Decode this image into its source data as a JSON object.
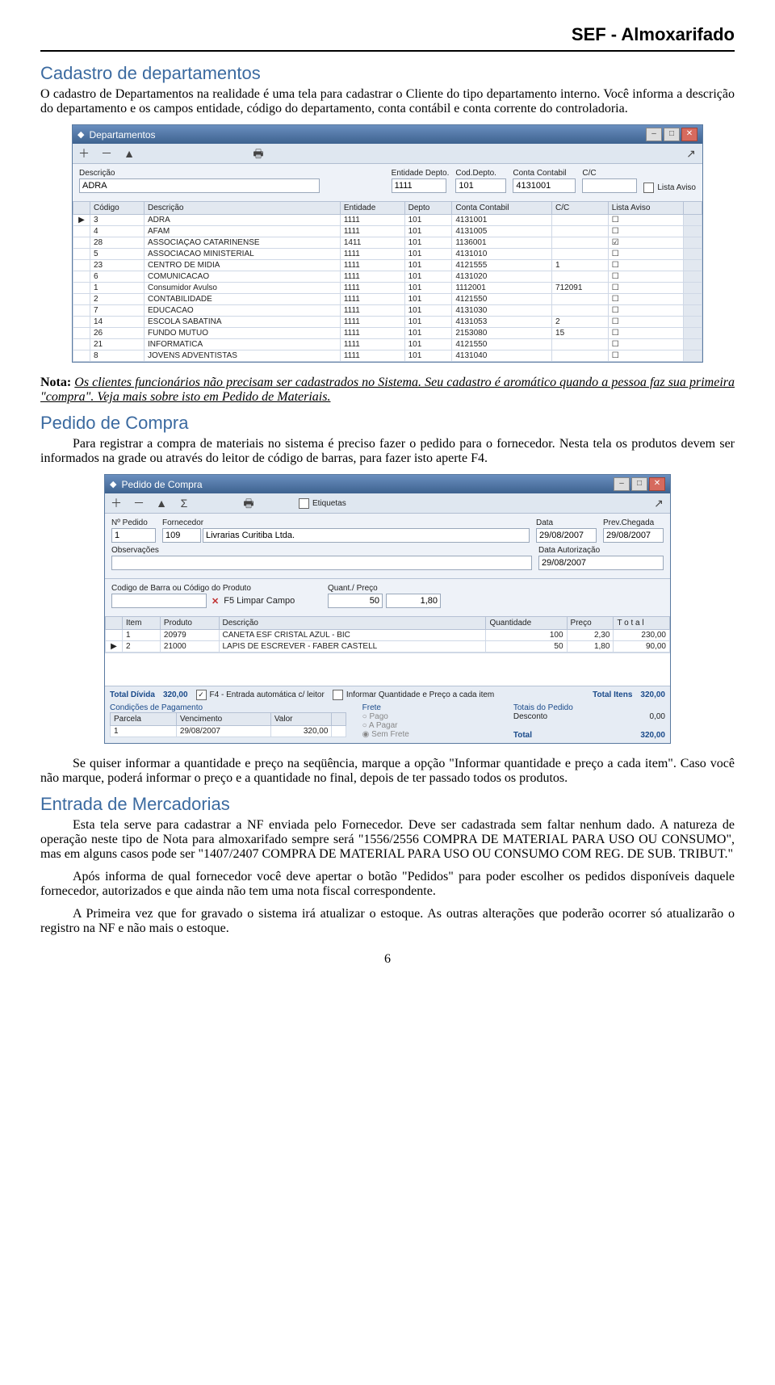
{
  "page": {
    "header": "SEF - Almoxarifado",
    "number": "6"
  },
  "sec1": {
    "title": "Cadastro de departamentos",
    "p1": "O cadastro de Departamentos na realidade é uma tela para cadastrar o Cliente do tipo departamento interno. Você informa a descrição do departamento e os campos entidade, código do departamento, conta contábil e conta corrente do controladoria."
  },
  "win1": {
    "title": "Departamentos",
    "form": {
      "descricao_label": "Descrição",
      "descricao_value": "ADRA",
      "entidade_label": "Entidade Depto.",
      "entidade_value": "1111",
      "coddepto_label": "Cod.Depto.",
      "coddepto_value": "101",
      "conta_label": "Conta Contabil",
      "conta_value": "4131001",
      "cc_label": "C/C",
      "cc_value": "",
      "lista_aviso": "Lista Aviso"
    },
    "columns": [
      "",
      "Código",
      "Descrição",
      "Entidade",
      "Depto",
      "Conta Contabil",
      "C/C",
      "Lista Aviso",
      ""
    ],
    "rows": [
      [
        "▶",
        "3",
        "ADRA",
        "1111",
        "101",
        "4131001",
        "",
        "☐",
        ""
      ],
      [
        "",
        "4",
        "AFAM",
        "1111",
        "101",
        "4131005",
        "",
        "☐",
        ""
      ],
      [
        "",
        "28",
        "ASSOCIAÇAO CATARINENSE",
        "1411",
        "101",
        "1136001",
        "",
        "☑",
        ""
      ],
      [
        "",
        "5",
        "ASSOCIACAO MINISTERIAL",
        "1111",
        "101",
        "4131010",
        "",
        "☐",
        ""
      ],
      [
        "",
        "23",
        "CENTRO DE MIDIA",
        "1111",
        "101",
        "4121555",
        "1",
        "☐",
        ""
      ],
      [
        "",
        "6",
        "COMUNICACAO",
        "1111",
        "101",
        "4131020",
        "",
        "☐",
        ""
      ],
      [
        "",
        "1",
        "Consumidor Avulso",
        "1111",
        "101",
        "1112001",
        "712091",
        "☐",
        ""
      ],
      [
        "",
        "2",
        "CONTABILIDADE",
        "1111",
        "101",
        "4121550",
        "",
        "☐",
        ""
      ],
      [
        "",
        "7",
        "EDUCACAO",
        "1111",
        "101",
        "4131030",
        "",
        "☐",
        ""
      ],
      [
        "",
        "14",
        "ESCOLA SABATINA",
        "1111",
        "101",
        "4131053",
        "2",
        "☐",
        ""
      ],
      [
        "",
        "26",
        "FUNDO MUTUO",
        "1111",
        "101",
        "2153080",
        "15",
        "☐",
        ""
      ],
      [
        "",
        "21",
        "INFORMATICA",
        "1111",
        "101",
        "4121550",
        "",
        "☐",
        ""
      ],
      [
        "",
        "8",
        "JOVENS ADVENTISTAS",
        "1111",
        "101",
        "4131040",
        "",
        "☐",
        ""
      ]
    ]
  },
  "nota": {
    "label": "Nota:",
    "text": " Os clientes funcionários não precisam ser cadastrados no Sistema. Seu cadastro é aromático quando a pessoa faz sua primeira \"compra\". Veja mais sobre isto em Pedido de Materiais."
  },
  "sec2": {
    "title": "Pedido de Compra",
    "p1": "Para registrar a compra de materiais no sistema é preciso fazer o pedido para o fornecedor. Nesta tela os produtos devem ser informados na grade ou através do leitor de código de barras, para fazer isto aperte F4."
  },
  "win2": {
    "title": "Pedido de Compra",
    "etiquetas": "Etiquetas",
    "header": {
      "npedido_label": "Nº Pedido",
      "npedido_value": "1",
      "fornecedor_label": "Fornecedor",
      "fornecedor_code": "109",
      "fornecedor_name": "Livrarias Curitiba Ltda.",
      "data_label": "Data",
      "data_value": "29/08/2007",
      "prev_label": "Prev.Chegada",
      "prev_value": "29/08/2007",
      "obs_label": "Observações",
      "obs_value": "",
      "auth_label": "Data Autorização",
      "auth_value": "29/08/2007"
    },
    "codbar": {
      "label": "Codigo de Barra ou Código do Produto",
      "clear": "F5 Limpar Campo",
      "quant_label": "Quant./ Preço",
      "quant_value": "50",
      "preco_value": "1,80"
    },
    "grid_columns": [
      "Item",
      "Produto",
      "Descrição",
      "Quantidade",
      "Preço",
      "T o t a l"
    ],
    "grid_rows": [
      [
        "",
        "1",
        "20979",
        "CANETA ESF CRISTAL AZUL - BIC",
        "100",
        "2,30",
        "230,00"
      ],
      [
        "▶",
        "2",
        "21000",
        "LAPIS DE ESCREVER - FABER CASTELL",
        "50",
        "1,80",
        "90,00"
      ]
    ],
    "footer": {
      "total_divida_label": "Total Dívida",
      "total_divida_value": "320,00",
      "f4_label": "F4 - Entrada automática c/ leitor",
      "inform_label": "Informar Quantidade e Preço a cada item",
      "total_itens_label": "Total Itens",
      "total_itens_value": "320,00",
      "cond_label": "Condições de Pagamento",
      "parc_cols": [
        "Parcela",
        "Vencimento",
        "Valor",
        ""
      ],
      "parc_row": [
        "1",
        "29/08/2007",
        "320,00",
        ""
      ],
      "frete_label": "Frete",
      "frete_pago": "Pago",
      "frete_apagar": "A Pagar",
      "frete_sem": "Sem Frete",
      "totais_label": "Totais do Pedido",
      "desconto_label": "Desconto",
      "desconto_value": "0,00",
      "total_label": "Total",
      "total_value": "320,00"
    }
  },
  "sec2b": {
    "p1": "Se quiser informar a quantidade e preço na seqüência, marque a opção \"Informar quantidade e preço a cada item\". Caso você não marque, poderá informar o preço e a quantidade no final, depois de ter passado todos os produtos."
  },
  "sec3": {
    "title": "Entrada de Mercadorias",
    "p1": "Esta tela serve para cadastrar a NF enviada pelo Fornecedor. Deve ser cadastrada sem faltar nenhum dado. A natureza de operação neste tipo de Nota para almoxarifado sempre será \"1556/2556 COMPRA DE MATERIAL PARA USO OU CONSUMO\", mas em alguns casos pode ser \"1407/2407 COMPRA DE MATERIAL PARA USO OU CONSUMO COM REG. DE SUB. TRIBUT.\"",
    "p2": "Após informa de qual fornecedor você deve apertar o botão \"Pedidos\" para poder escolher os pedidos disponíveis daquele fornecedor, autorizados e que ainda não tem uma nota fiscal correspondente.",
    "p3": "A Primeira vez que for gravado o sistema irá atualizar o estoque. As outras alterações que poderão ocorrer só atualizarão o registro na NF e não mais o estoque."
  }
}
